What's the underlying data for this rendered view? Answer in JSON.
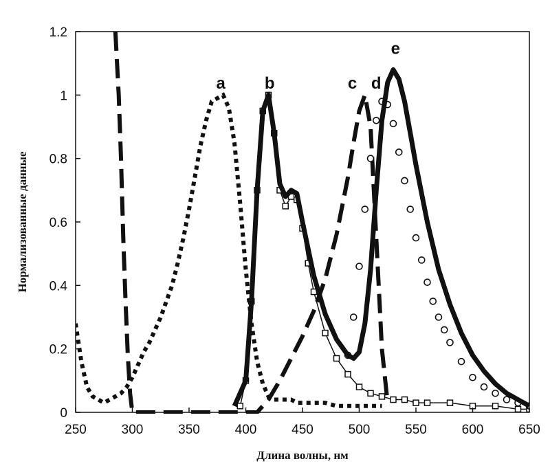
{
  "chart_data": {
    "type": "line",
    "title": "",
    "xlabel": "Длина волны, нм",
    "ylabel": "Нормализованные данные",
    "xlim": [
      250,
      650
    ],
    "ylim": [
      0,
      1.2
    ],
    "x_ticks": [
      250,
      300,
      350,
      400,
      450,
      500,
      550,
      600,
      650
    ],
    "y_ticks": [
      0,
      0.2,
      0.4,
      0.6,
      0.8,
      1,
      1.2
    ],
    "y_tick_labels": [
      "0",
      "0.2",
      "0.4",
      "0.6",
      "0.8",
      "1",
      "1.2"
    ],
    "grid": false,
    "series": [
      {
        "name": "a",
        "style": "dotted-squares",
        "x": [
          250,
          255,
          260,
          265,
          270,
          275,
          280,
          285,
          290,
          295,
          300,
          305,
          310,
          315,
          320,
          325,
          330,
          335,
          340,
          345,
          350,
          355,
          360,
          365,
          370,
          375,
          380,
          385,
          390,
          395,
          400,
          405,
          410,
          415,
          420,
          425,
          430,
          435,
          440,
          445,
          450,
          460,
          470,
          480,
          490,
          500,
          510,
          520
        ],
        "y": [
          0.28,
          0.16,
          0.08,
          0.05,
          0.04,
          0.03,
          0.04,
          0.05,
          0.06,
          0.08,
          0.11,
          0.15,
          0.19,
          0.22,
          0.26,
          0.3,
          0.35,
          0.4,
          0.47,
          0.55,
          0.64,
          0.74,
          0.84,
          0.92,
          0.98,
          0.99,
          1.0,
          0.96,
          0.85,
          0.66,
          0.45,
          0.28,
          0.16,
          0.09,
          0.05,
          0.04,
          0.04,
          0.04,
          0.04,
          0.03,
          0.03,
          0.03,
          0.03,
          0.02,
          0.02,
          0.02,
          0.02,
          0.02
        ]
      },
      {
        "name": "b",
        "style": "open-squares",
        "x": [
          395,
          400,
          405,
          410,
          415,
          420,
          425,
          430,
          435,
          440,
          445,
          450,
          455,
          460,
          470,
          480,
          490,
          500,
          510,
          520,
          530,
          540,
          550,
          560,
          580,
          600,
          620,
          640,
          650
        ],
        "y": [
          0.02,
          0.1,
          0.35,
          0.7,
          0.95,
          1.0,
          0.88,
          0.7,
          0.65,
          0.68,
          0.67,
          0.58,
          0.47,
          0.38,
          0.25,
          0.17,
          0.12,
          0.08,
          0.06,
          0.05,
          0.04,
          0.04,
          0.03,
          0.03,
          0.03,
          0.02,
          0.02,
          0.01,
          0.01
        ]
      },
      {
        "name": "c",
        "style": "long-dash",
        "x": [
          285,
          288,
          290,
          292,
          294,
          296,
          298,
          300,
          410,
          420,
          430,
          440,
          450,
          460,
          470,
          480,
          490,
          495,
          500,
          505,
          510,
          515,
          520,
          525
        ],
        "y": [
          1.2,
          1.0,
          0.8,
          0.55,
          0.35,
          0.18,
          0.06,
          0.0,
          0.0,
          0.04,
          0.1,
          0.17,
          0.24,
          0.32,
          0.42,
          0.56,
          0.74,
          0.85,
          0.95,
          1.0,
          0.9,
          0.55,
          0.2,
          0.03
        ]
      },
      {
        "name": "d",
        "style": "open-circles",
        "x": [
          490,
          495,
          500,
          505,
          510,
          515,
          520,
          525,
          530,
          535,
          540,
          545,
          550,
          555,
          560,
          565,
          570,
          575,
          580,
          590,
          600,
          610,
          620,
          630,
          640,
          650
        ],
        "y": [
          0.18,
          0.3,
          0.46,
          0.64,
          0.8,
          0.92,
          0.98,
          0.97,
          0.91,
          0.82,
          0.73,
          0.64,
          0.55,
          0.48,
          0.41,
          0.35,
          0.3,
          0.26,
          0.22,
          0.16,
          0.11,
          0.08,
          0.06,
          0.04,
          0.03,
          0.02
        ]
      },
      {
        "name": "e",
        "style": "thick-solid",
        "x": [
          390,
          400,
          405,
          410,
          415,
          420,
          425,
          430,
          435,
          440,
          445,
          450,
          460,
          470,
          480,
          490,
          495,
          500,
          505,
          510,
          515,
          520,
          525,
          530,
          535,
          540,
          545,
          550,
          560,
          570,
          580,
          590,
          600,
          610,
          620,
          630,
          640,
          650
        ],
        "y": [
          0.02,
          0.1,
          0.35,
          0.7,
          0.95,
          1.0,
          0.88,
          0.72,
          0.68,
          0.7,
          0.69,
          0.6,
          0.43,
          0.31,
          0.23,
          0.18,
          0.17,
          0.19,
          0.28,
          0.45,
          0.7,
          0.92,
          1.04,
          1.08,
          1.05,
          0.98,
          0.88,
          0.78,
          0.6,
          0.45,
          0.34,
          0.25,
          0.18,
          0.13,
          0.09,
          0.06,
          0.04,
          0.02
        ]
      }
    ],
    "annotations": [
      {
        "text": "a",
        "x": 378,
        "y": 1.02
      },
      {
        "text": "b",
        "x": 421,
        "y": 1.02
      },
      {
        "text": "c",
        "x": 494,
        "y": 1.02
      },
      {
        "text": "d",
        "x": 515,
        "y": 1.02
      },
      {
        "text": "e",
        "x": 532,
        "y": 1.13
      }
    ]
  }
}
